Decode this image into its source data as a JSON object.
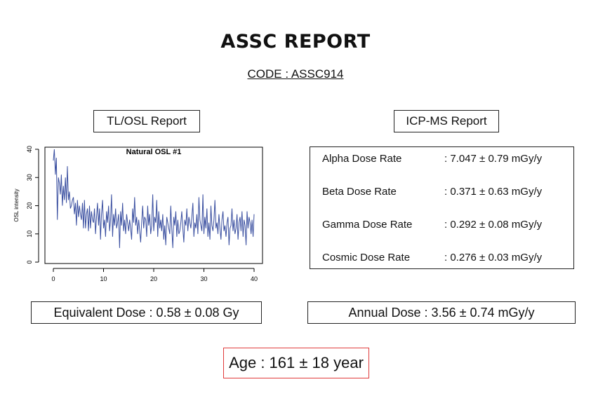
{
  "report": {
    "title": "ASSC REPORT",
    "code": "CODE : ASSC914"
  },
  "tl_osl": {
    "header": "TL/OSL Report",
    "equivalent_dose": "Equivalent Dose : 0.58 ± 0.08 Gy"
  },
  "icp_ms": {
    "header": "ICP-MS Report",
    "rows": [
      {
        "label": "Alpha Dose Rate",
        "value": ": 7.047 ± 0.79 mGy/y"
      },
      {
        "label": "Beta Dose Rate",
        "value": ": 0.371 ± 0.63 mGy/y"
      },
      {
        "label": "Gamma Dose Rate",
        "value": ": 0.292 ± 0.08 mGy/y"
      },
      {
        "label": "Cosmic Dose Rate",
        "value": ": 0.276 ± 0.03 mGy/y"
      }
    ],
    "annual_dose": "Annual Dose : 3.56 ± 0.74 mGy/y"
  },
  "age": "Age : 161 ± 18 year",
  "colors": {
    "series": "#3a4fa0",
    "age_border": "#e03a3a"
  },
  "chart_data": {
    "type": "line",
    "title": "Natural OSL #1",
    "xlabel": "",
    "ylabel": "OSL intensity",
    "xlim": [
      0,
      40
    ],
    "ylim": [
      0,
      40
    ],
    "xticks": [
      0,
      10,
      20,
      30,
      40
    ],
    "yticks": [
      0,
      10,
      20,
      30,
      40
    ],
    "grid": false,
    "series": [
      {
        "x": [
          0.0,
          0.2,
          0.4,
          0.6,
          0.8,
          1.0,
          1.2,
          1.4,
          1.6,
          1.8,
          2.0,
          2.2,
          2.4,
          2.6,
          2.8,
          3.0,
          3.2,
          3.4,
          3.6,
          3.8,
          4.0,
          4.2,
          4.4,
          4.6,
          4.8,
          5.0,
          5.2,
          5.4,
          5.6,
          5.8,
          6.0,
          6.2,
          6.4,
          6.6,
          6.8,
          7.0,
          7.2,
          7.4,
          7.6,
          7.8,
          8.0,
          8.2,
          8.4,
          8.6,
          8.8,
          9.0,
          9.2,
          9.4,
          9.6,
          9.8,
          10.0,
          10.2,
          10.4,
          10.6,
          10.8,
          11.0,
          11.2,
          11.4,
          11.6,
          11.8,
          12.0,
          12.2,
          12.4,
          12.6,
          12.8,
          13.0,
          13.2,
          13.4,
          13.6,
          13.8,
          14.0,
          14.2,
          14.4,
          14.6,
          14.8,
          15.0,
          15.2,
          15.4,
          15.6,
          15.8,
          16.0,
          16.2,
          16.4,
          16.6,
          16.8,
          17.0,
          17.2,
          17.4,
          17.6,
          17.8,
          18.0,
          18.2,
          18.4,
          18.6,
          18.8,
          19.0,
          19.2,
          19.4,
          19.6,
          19.8,
          20.0,
          20.2,
          20.4,
          20.6,
          20.8,
          21.0,
          21.2,
          21.4,
          21.6,
          21.8,
          22.0,
          22.2,
          22.4,
          22.6,
          22.8,
          23.0,
          23.2,
          23.4,
          23.6,
          23.8,
          24.0,
          24.2,
          24.4,
          24.6,
          24.8,
          25.0,
          25.2,
          25.4,
          25.6,
          25.8,
          26.0,
          26.2,
          26.4,
          26.6,
          26.8,
          27.0,
          27.2,
          27.4,
          27.6,
          27.8,
          28.0,
          28.2,
          28.4,
          28.6,
          28.8,
          29.0,
          29.2,
          29.4,
          29.6,
          29.8,
          30.0,
          30.2,
          30.4,
          30.6,
          30.8,
          31.0,
          31.2,
          31.4,
          31.6,
          31.8,
          32.0,
          32.2,
          32.4,
          32.6,
          32.8,
          33.0,
          33.2,
          33.4,
          33.6,
          33.8,
          34.0,
          34.2,
          34.4,
          34.6,
          34.8,
          35.0,
          35.2,
          35.4,
          35.6,
          35.8,
          36.0,
          36.2,
          36.4,
          36.6,
          36.8,
          37.0,
          37.2,
          37.4,
          37.6,
          37.8,
          38.0,
          38.2,
          38.4,
          38.6,
          38.8,
          39.0,
          39.2,
          39.4,
          39.6,
          39.8,
          40.0
        ],
        "y": [
          36,
          40,
          31,
          37,
          15,
          30,
          28,
          24,
          31,
          20,
          27,
          22,
          30,
          21,
          34,
          22,
          25,
          19,
          20,
          22,
          23,
          17,
          21,
          13,
          22,
          16,
          20,
          17,
          15,
          21,
          12,
          22,
          12,
          17,
          19,
          11,
          20,
          12,
          18,
          15,
          14,
          19,
          10,
          16,
          21,
          13,
          19,
          8,
          17,
          22,
          12,
          15,
          9,
          18,
          14,
          20,
          11,
          15,
          24,
          9,
          17,
          13,
          19,
          12,
          14,
          17,
          5,
          18,
          13,
          21,
          11,
          15,
          10,
          17,
          14,
          11,
          15,
          12,
          8,
          19,
          14,
          23,
          13,
          16,
          10,
          15,
          11,
          7,
          14,
          20,
          12,
          16,
          15,
          9,
          20,
          13,
          17,
          10,
          13,
          24,
          11,
          16,
          14,
          22,
          9,
          18,
          12,
          15,
          11,
          17,
          8,
          13,
          6,
          16,
          14,
          12,
          10,
          20,
          12,
          5,
          16,
          13,
          18,
          9,
          15,
          10,
          11,
          14,
          18,
          12,
          7,
          15,
          13,
          19,
          11,
          16,
          14,
          12,
          16,
          21,
          9,
          14,
          12,
          17,
          10,
          23,
          15,
          13,
          11,
          24,
          10,
          16,
          12,
          19,
          9,
          14,
          8,
          20,
          13,
          11,
          15,
          22,
          12,
          14,
          10,
          17,
          12,
          8,
          15,
          18,
          11,
          13,
          9,
          14,
          16,
          6,
          12,
          13,
          19,
          11,
          15,
          10,
          12,
          17,
          8,
          14,
          16,
          11,
          18,
          9,
          15,
          13,
          6,
          18,
          12,
          16,
          14,
          10,
          15,
          9,
          17
        ]
      }
    ]
  }
}
